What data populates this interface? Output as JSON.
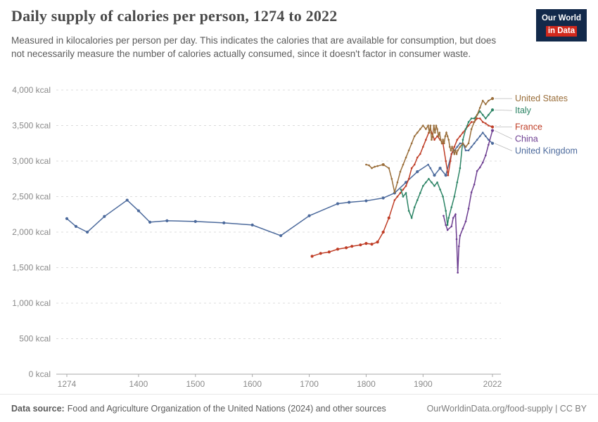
{
  "logo": {
    "line1": "Our World",
    "line2": "in Data",
    "bg_color": "#12294A",
    "accent_color": "#D0281C"
  },
  "header": {
    "title": "Daily supply of calories per person, 1274 to 2022",
    "subtitle": "Measured in kilocalories per person per day. This indicates the calories that are available for consumption, but does not necessarily measure the number of calories actually consumed, since it doesn't factor in consumer waste."
  },
  "footer": {
    "source_label": "Data source:",
    "source_text": "Food and Agriculture Organization of the United Nations (2024) and other sources",
    "credit": "OurWorldinData.org/food-supply | CC BY"
  },
  "chart_data": {
    "type": "line",
    "title": "Daily supply of calories per person, 1274 to 2022",
    "xlabel": "",
    "ylabel": "",
    "xlim": [
      1274,
      2022
    ],
    "ylim": [
      0,
      4000
    ],
    "x_ticks": [
      1274,
      1400,
      1500,
      1600,
      1700,
      1800,
      1900,
      2022
    ],
    "y_ticks": [
      0,
      500,
      1000,
      1500,
      2000,
      2500,
      3000,
      3500,
      4000
    ],
    "y_tick_suffix": " kcal",
    "grid": "horizontal-dashed",
    "legend_position": "right-of-line-ends",
    "series": [
      {
        "name": "United States",
        "color": "#996D39",
        "points": [
          [
            1800,
            2950
          ],
          [
            1805,
            2940
          ],
          [
            1810,
            2900
          ],
          [
            1815,
            2920
          ],
          [
            1820,
            2930
          ],
          [
            1830,
            2950
          ],
          [
            1840,
            2900
          ],
          [
            1845,
            2750
          ],
          [
            1850,
            2560
          ],
          [
            1855,
            2700
          ],
          [
            1860,
            2850
          ],
          [
            1865,
            2950
          ],
          [
            1870,
            3050
          ],
          [
            1875,
            3150
          ],
          [
            1880,
            3250
          ],
          [
            1885,
            3350
          ],
          [
            1890,
            3400
          ],
          [
            1895,
            3450
          ],
          [
            1900,
            3500
          ],
          [
            1905,
            3450
          ],
          [
            1909,
            3500
          ],
          [
            1911,
            3400
          ],
          [
            1913,
            3500
          ],
          [
            1915,
            3300
          ],
          [
            1917,
            3350
          ],
          [
            1919,
            3500
          ],
          [
            1921,
            3400
          ],
          [
            1923,
            3500
          ],
          [
            1925,
            3450
          ],
          [
            1927,
            3350
          ],
          [
            1929,
            3400
          ],
          [
            1931,
            3300
          ],
          [
            1933,
            3250
          ],
          [
            1935,
            3300
          ],
          [
            1937,
            3250
          ],
          [
            1939,
            3350
          ],
          [
            1941,
            3400
          ],
          [
            1943,
            3350
          ],
          [
            1945,
            3300
          ],
          [
            1947,
            3200
          ],
          [
            1949,
            3150
          ],
          [
            1951,
            3200
          ],
          [
            1953,
            3150
          ],
          [
            1955,
            3100
          ],
          [
            1957,
            3150
          ],
          [
            1959,
            3100
          ],
          [
            1961,
            3150
          ],
          [
            1965,
            3200
          ],
          [
            1970,
            3250
          ],
          [
            1975,
            3200
          ],
          [
            1980,
            3250
          ],
          [
            1985,
            3450
          ],
          [
            1990,
            3550
          ],
          [
            1995,
            3650
          ],
          [
            2000,
            3750
          ],
          [
            2005,
            3850
          ],
          [
            2010,
            3800
          ],
          [
            2015,
            3850
          ],
          [
            2022,
            3880
          ]
        ]
      },
      {
        "name": "Italy",
        "color": "#2C8465",
        "points": [
          [
            1861,
            2600
          ],
          [
            1865,
            2500
          ],
          [
            1870,
            2550
          ],
          [
            1875,
            2300
          ],
          [
            1880,
            2200
          ],
          [
            1885,
            2350
          ],
          [
            1890,
            2450
          ],
          [
            1895,
            2550
          ],
          [
            1900,
            2650
          ],
          [
            1905,
            2700
          ],
          [
            1910,
            2750
          ],
          [
            1915,
            2700
          ],
          [
            1920,
            2650
          ],
          [
            1925,
            2700
          ],
          [
            1930,
            2600
          ],
          [
            1935,
            2500
          ],
          [
            1940,
            2300
          ],
          [
            1943,
            2100
          ],
          [
            1945,
            2200
          ],
          [
            1950,
            2350
          ],
          [
            1955,
            2500
          ],
          [
            1960,
            2700
          ],
          [
            1965,
            2900
          ],
          [
            1970,
            3300
          ],
          [
            1975,
            3450
          ],
          [
            1980,
            3550
          ],
          [
            1985,
            3600
          ],
          [
            1990,
            3600
          ],
          [
            1995,
            3650
          ],
          [
            2000,
            3700
          ],
          [
            2005,
            3650
          ],
          [
            2010,
            3600
          ],
          [
            2015,
            3650
          ],
          [
            2022,
            3720
          ]
        ]
      },
      {
        "name": "France",
        "color": "#BF3D26",
        "points": [
          [
            1705,
            1660
          ],
          [
            1720,
            1700
          ],
          [
            1735,
            1720
          ],
          [
            1750,
            1760
          ],
          [
            1765,
            1780
          ],
          [
            1775,
            1800
          ],
          [
            1790,
            1820
          ],
          [
            1800,
            1840
          ],
          [
            1810,
            1830
          ],
          [
            1820,
            1860
          ],
          [
            1830,
            2000
          ],
          [
            1840,
            2200
          ],
          [
            1850,
            2450
          ],
          [
            1855,
            2500
          ],
          [
            1860,
            2550
          ],
          [
            1865,
            2600
          ],
          [
            1870,
            2650
          ],
          [
            1875,
            2750
          ],
          [
            1880,
            2900
          ],
          [
            1885,
            2950
          ],
          [
            1890,
            3050
          ],
          [
            1895,
            3100
          ],
          [
            1900,
            3200
          ],
          [
            1905,
            3300
          ],
          [
            1910,
            3400
          ],
          [
            1913,
            3450
          ],
          [
            1920,
            3300
          ],
          [
            1925,
            3350
          ],
          [
            1930,
            3300
          ],
          [
            1935,
            3250
          ],
          [
            1940,
            3000
          ],
          [
            1944,
            2800
          ],
          [
            1948,
            3000
          ],
          [
            1950,
            3100
          ],
          [
            1955,
            3200
          ],
          [
            1960,
            3300
          ],
          [
            1965,
            3350
          ],
          [
            1970,
            3400
          ],
          [
            1975,
            3450
          ],
          [
            1980,
            3500
          ],
          [
            1985,
            3550
          ],
          [
            1990,
            3550
          ],
          [
            1995,
            3600
          ],
          [
            2000,
            3600
          ],
          [
            2005,
            3550
          ],
          [
            2010,
            3530
          ],
          [
            2015,
            3500
          ],
          [
            2022,
            3480
          ]
        ]
      },
      {
        "name": "China",
        "color": "#6D3E91",
        "points": [
          [
            1936,
            2230
          ],
          [
            1940,
            2100
          ],
          [
            1943,
            2030
          ],
          [
            1950,
            2080
          ],
          [
            1953,
            2200
          ],
          [
            1957,
            2250
          ],
          [
            1959,
            1900
          ],
          [
            1961,
            1430
          ],
          [
            1963,
            1800
          ],
          [
            1965,
            1950
          ],
          [
            1970,
            2050
          ],
          [
            1975,
            2150
          ],
          [
            1980,
            2330
          ],
          [
            1985,
            2560
          ],
          [
            1990,
            2670
          ],
          [
            1995,
            2860
          ],
          [
            2000,
            2910
          ],
          [
            2005,
            2980
          ],
          [
            2010,
            3080
          ],
          [
            2015,
            3230
          ],
          [
            2022,
            3430
          ]
        ]
      },
      {
        "name": "United Kingdom",
        "color": "#4C6A9C",
        "points": [
          [
            1274,
            2190
          ],
          [
            1290,
            2080
          ],
          [
            1310,
            2000
          ],
          [
            1340,
            2220
          ],
          [
            1380,
            2450
          ],
          [
            1400,
            2300
          ],
          [
            1420,
            2140
          ],
          [
            1450,
            2160
          ],
          [
            1500,
            2150
          ],
          [
            1550,
            2130
          ],
          [
            1600,
            2100
          ],
          [
            1650,
            1950
          ],
          [
            1700,
            2230
          ],
          [
            1750,
            2400
          ],
          [
            1770,
            2420
          ],
          [
            1800,
            2440
          ],
          [
            1830,
            2480
          ],
          [
            1850,
            2550
          ],
          [
            1870,
            2700
          ],
          [
            1890,
            2850
          ],
          [
            1909,
            2950
          ],
          [
            1913,
            2900
          ],
          [
            1920,
            2800
          ],
          [
            1930,
            2900
          ],
          [
            1940,
            2800
          ],
          [
            1950,
            3100
          ],
          [
            1955,
            3150
          ],
          [
            1960,
            3200
          ],
          [
            1965,
            3250
          ],
          [
            1970,
            3250
          ],
          [
            1975,
            3150
          ],
          [
            1980,
            3150
          ],
          [
            1985,
            3200
          ],
          [
            1990,
            3250
          ],
          [
            1995,
            3300
          ],
          [
            2000,
            3350
          ],
          [
            2005,
            3400
          ],
          [
            2010,
            3350
          ],
          [
            2015,
            3300
          ],
          [
            2022,
            3250
          ]
        ]
      }
    ]
  }
}
